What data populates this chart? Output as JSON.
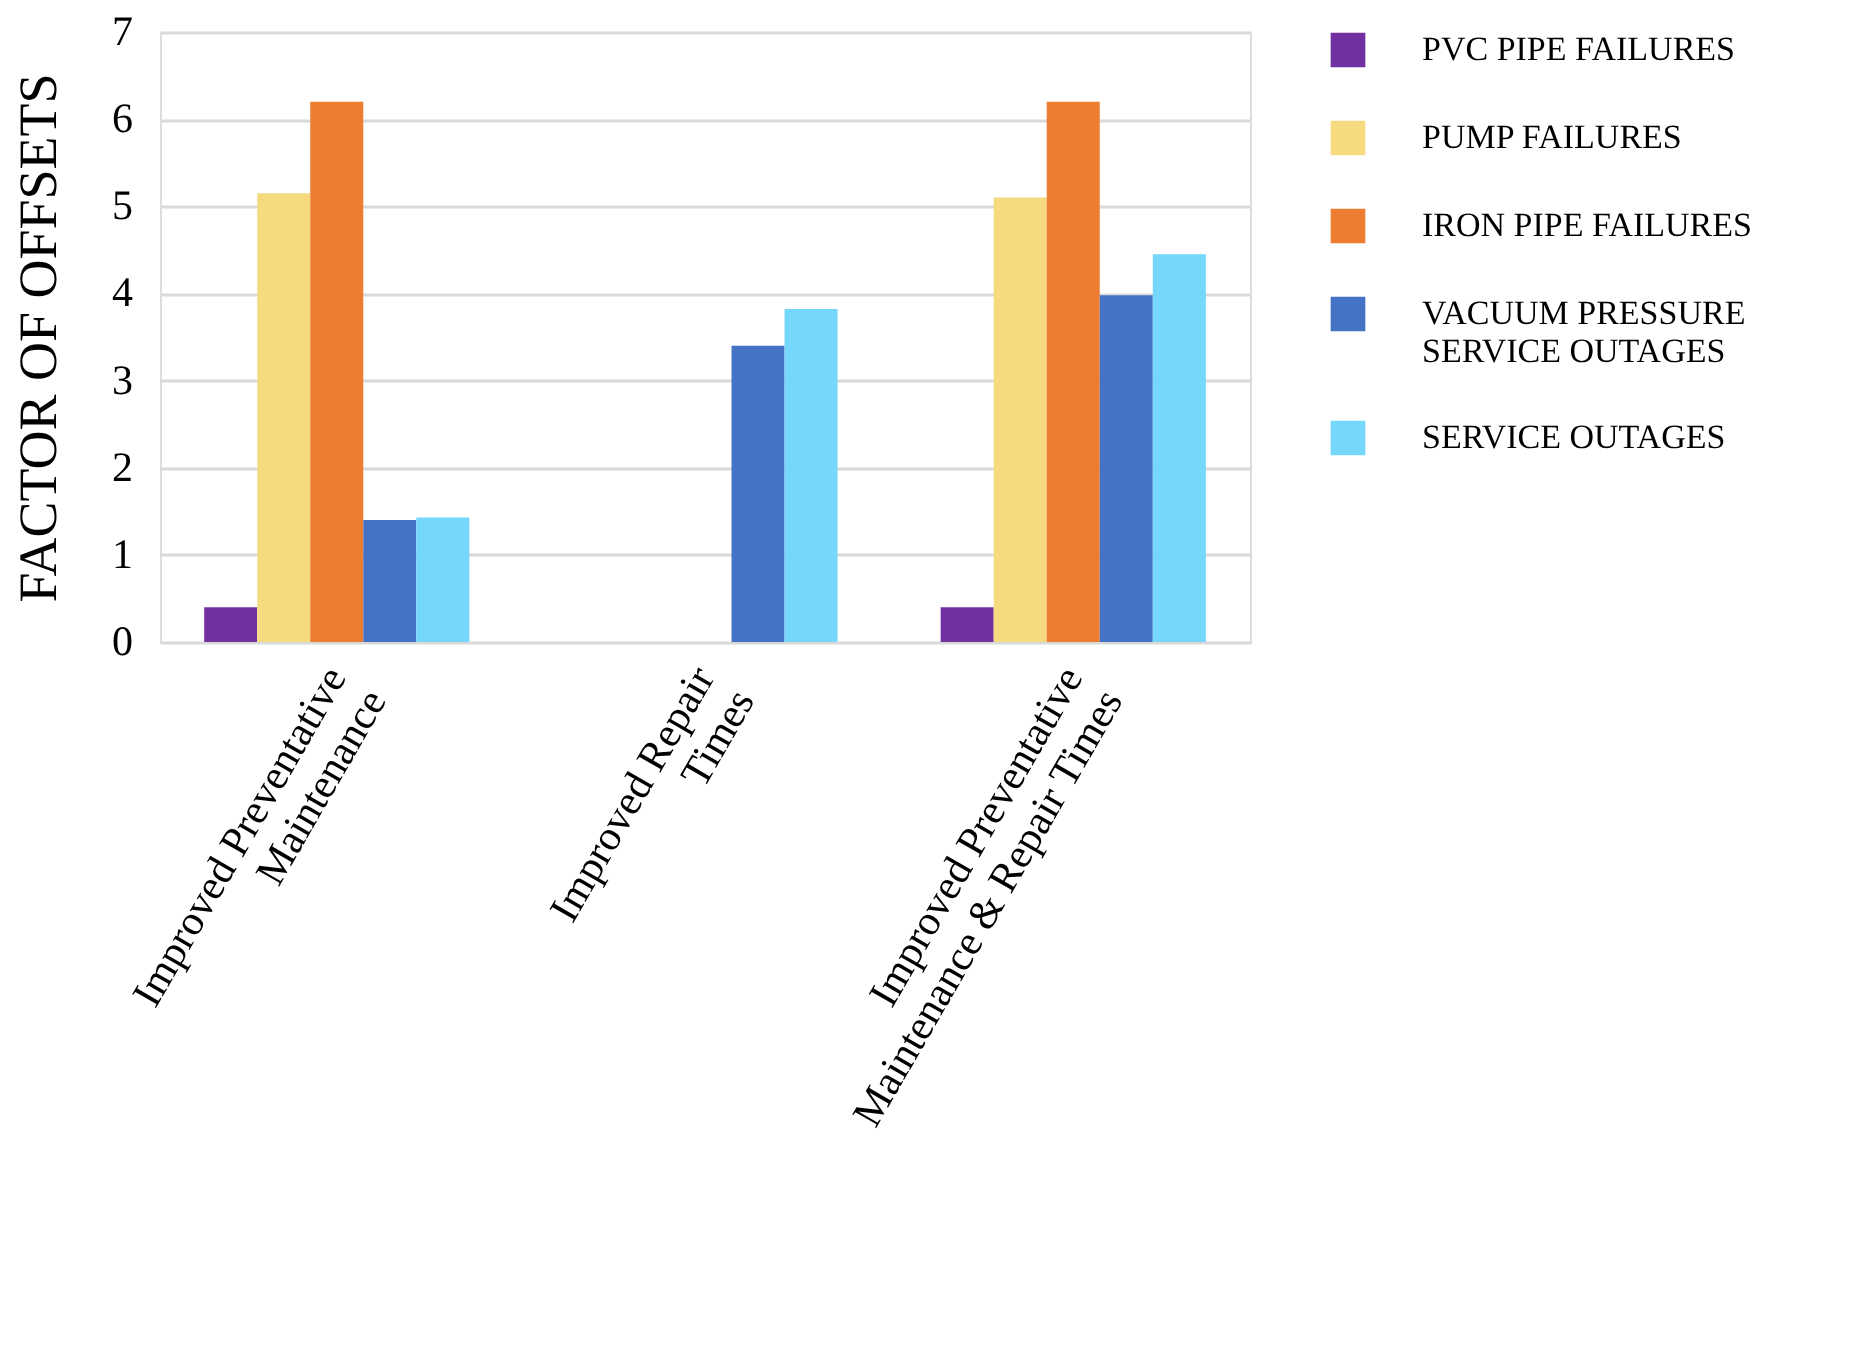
{
  "chart_data": {
    "type": "bar",
    "ylabel": "FACTOR OF OFFSETS",
    "categories": [
      "Improved Preventative\nMaintenance",
      "Improved  Repair\nTimes",
      "Improved Preventative\nMaintenance & Repair Times"
    ],
    "series": [
      {
        "name": "PVC PIPE FAILURES",
        "color": "#7030a0",
        "values": [
          0.4,
          null,
          0.4
        ]
      },
      {
        "name": "PUMP FAILURES",
        "color": "#f5da80",
        "values": [
          5.15,
          null,
          5.1
        ]
      },
      {
        "name": "IRON PIPE FAILURES",
        "color": "#ed7d31",
        "values": [
          6.2,
          null,
          6.2
        ]
      },
      {
        "name": "VACUUM PRESSURE\nSERVICE OUTAGES",
        "color": "#4472c4",
        "values": [
          1.4,
          3.4,
          3.98
        ]
      },
      {
        "name": "SERVICE OUTAGES",
        "color": "#75d7fc",
        "values": [
          1.43,
          3.82,
          4.45
        ]
      }
    ],
    "ylim": [
      0,
      7
    ],
    "yticks": [
      0,
      1,
      2,
      3,
      4,
      5,
      6,
      7
    ],
    "grid": "y",
    "legend": "right"
  }
}
